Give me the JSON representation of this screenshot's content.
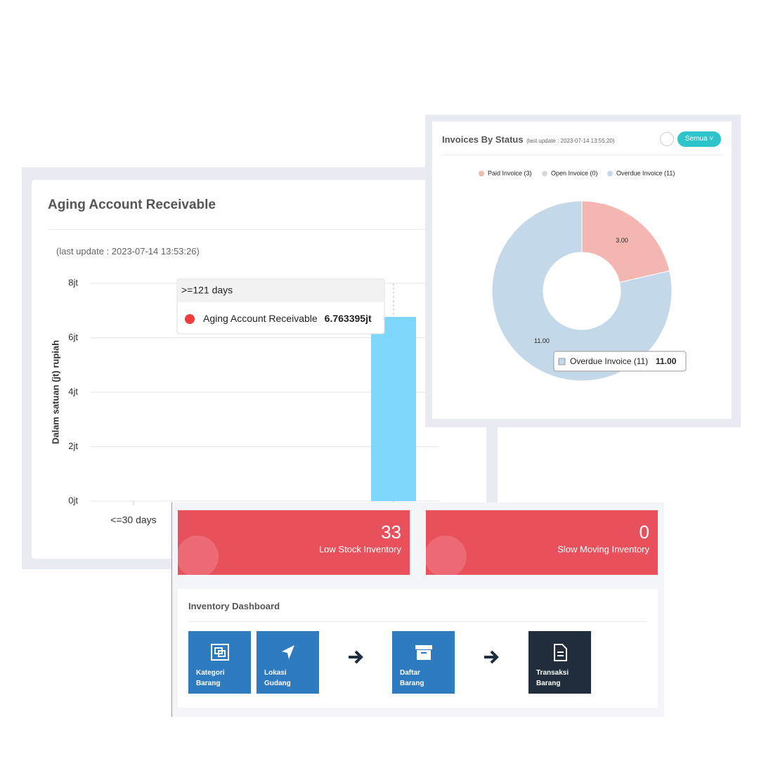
{
  "aging_panel": {
    "title": "Aging Account Receivable",
    "last_update": "(last update : 2023-07-14 13:53:26)"
  },
  "invoice_panel": {
    "title": "Invoices By Status",
    "last_update": "(last update : 2023-07-14 13:55:20)",
    "filter_button": "Semua"
  },
  "chart_data": [
    {
      "type": "bar",
      "y_label": "Dalam satuan (jt) rupiah",
      "categories": [
        "<=30 days",
        null,
        null,
        null,
        ">=121 days"
      ],
      "series": [
        {
          "name": "Aging Account Receivable",
          "color": "#7dd7fc",
          "values": [
            0,
            0,
            0,
            0,
            6.763395
          ],
          "value_labels": [
            null,
            null,
            null,
            null,
            "6.763395jt"
          ]
        }
      ],
      "ylim": [
        0,
        8
      ],
      "yticks": [
        {
          "value": 0,
          "label": "0jt"
        },
        {
          "value": 2,
          "label": "2jt"
        },
        {
          "value": 4,
          "label": "4jt"
        },
        {
          "value": 6,
          "label": "6jt"
        },
        {
          "value": 8,
          "label": "8jt"
        }
      ],
      "grid": true,
      "tooltip_index": 4
    },
    {
      "type": "donut",
      "categories": [
        "Paid Invoice",
        "Open Invoice",
        "Overdue Invoice"
      ],
      "legend_labels": [
        "Paid Invoice (3)",
        "Open Invoice (0)",
        "Overdue Invoice (11)"
      ],
      "values": [
        3,
        0,
        11
      ],
      "value_labels": [
        "3.00",
        null,
        "11.00"
      ],
      "colors": [
        "#f4b6b0",
        "#d9d9d9",
        "#c3d9ea"
      ],
      "tooltip_index": 2
    }
  ],
  "tiles": [
    {
      "value": 33,
      "label": "Low Stock Inventory"
    },
    {
      "value": 0,
      "label": "Slow Moving Inventory"
    }
  ],
  "inventory": {
    "title": "Inventory Dashboard",
    "items": [
      "Kategori Barang",
      "Lokasi Gudang",
      "Daftar Barang",
      "Transaksi Barang"
    ]
  }
}
